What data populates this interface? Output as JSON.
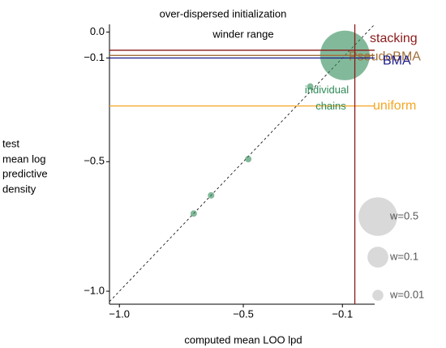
{
  "chart_data": {
    "type": "scatter",
    "title": "over-dispersed initialization",
    "subtitle": "winder range",
    "x_label": "computed mean LOO lpd",
    "y_label": [
      "test",
      "mean log",
      "predictive",
      "density"
    ],
    "xlim": [
      -1.04,
      0.03
    ],
    "ylim": [
      -1.05,
      0.03
    ],
    "xticks": [
      {
        "value": -1.0,
        "label": "−1.0"
      },
      {
        "value": -0.5,
        "label": "−0.5"
      },
      {
        "value": -0.1,
        "label": "−0.1"
      }
    ],
    "yticks": [
      {
        "value": 0.0,
        "label": "0.0"
      },
      {
        "value": -0.1,
        "label": "−0.1"
      },
      {
        "value": -0.5,
        "label": "−0.5"
      },
      {
        "value": -1.0,
        "label": "−1.0"
      }
    ],
    "points": {
      "name": "individual chains",
      "color": "#2e8b57",
      "x": [
        -0.09,
        -0.23,
        -0.48,
        -0.63,
        -0.7
      ],
      "values": [
        -0.09,
        -0.21,
        -0.49,
        -0.63,
        -0.7
      ],
      "sizes": [
        0.9,
        0.0,
        0.0,
        0.0,
        0.0
      ]
    },
    "hlines": [
      {
        "name": "stacking",
        "color": "#8b1a1a",
        "value": -0.07
      },
      {
        "name": "PseudoBMA",
        "color": "#a0703a",
        "value": -0.09
      },
      {
        "name": "BMA",
        "color": "#1a1a8b",
        "value": -0.1
      },
      {
        "name": "uniform",
        "color": "#f5a623",
        "value": -0.285
      }
    ],
    "vline": {
      "color": "#8b1a1a",
      "value": -0.05
    },
    "size_legend": {
      "color": "#d9d9d9",
      "values": [
        0.5,
        0.1,
        0.01
      ],
      "value_labels": [
        "w=0.5",
        "w=0.1",
        "w=0.01"
      ]
    }
  }
}
